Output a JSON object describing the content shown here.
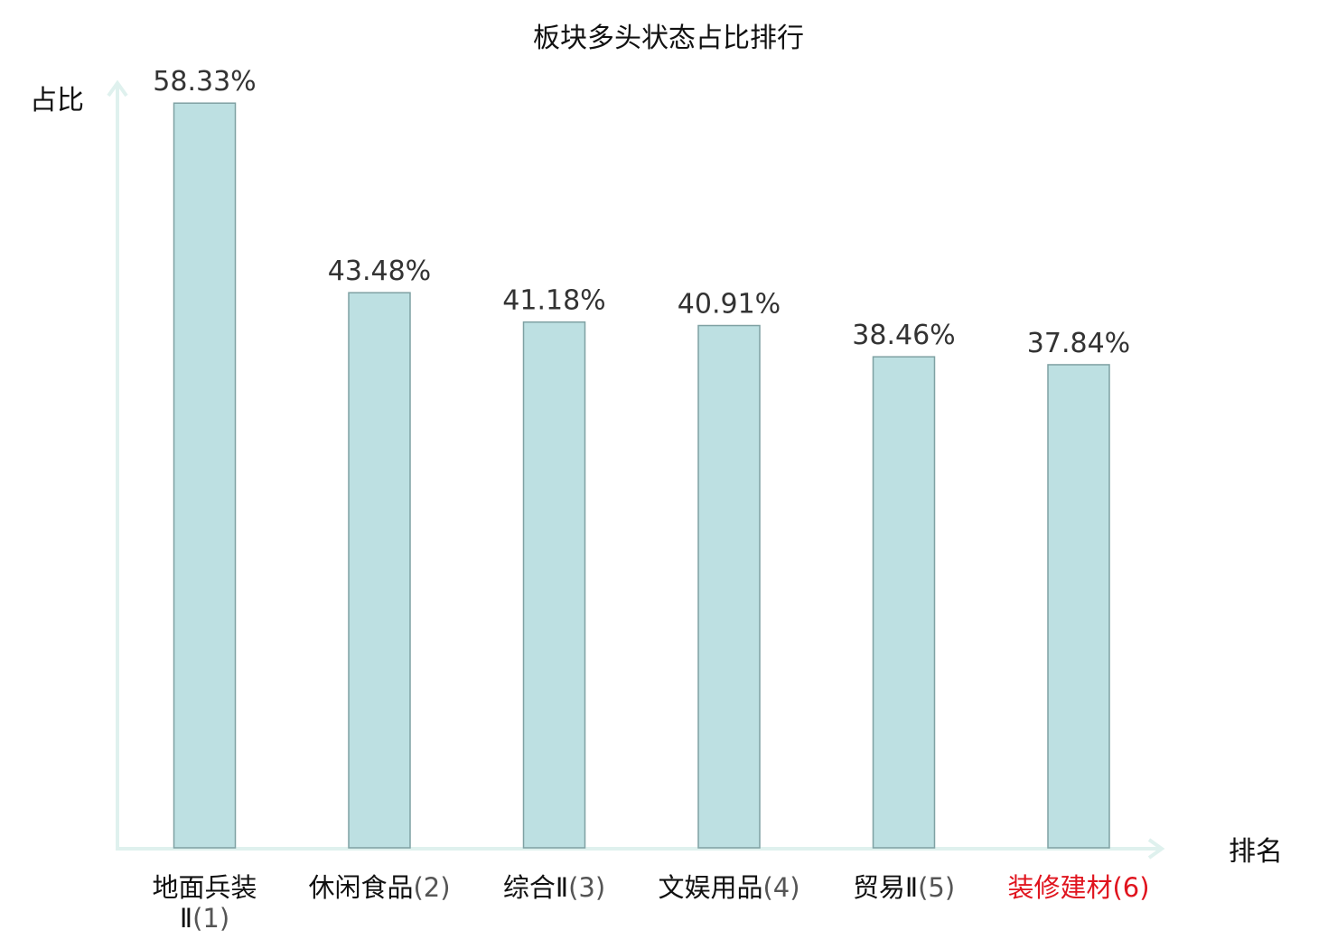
{
  "chart_data": {
    "type": "bar",
    "title": "板块多头状态占比排行",
    "ylabel": "占比",
    "xlabel": "排名",
    "ylim": [
      0,
      60
    ],
    "grid": false,
    "categories": [
      {
        "name_lines": [
          "地面兵装",
          "Ⅱ"
        ],
        "rank": "(1)",
        "highlight": false
      },
      {
        "name_lines": [
          "休闲食品"
        ],
        "rank": "(2)",
        "highlight": false
      },
      {
        "name_lines": [
          "综合Ⅱ"
        ],
        "rank": "(3)",
        "highlight": false
      },
      {
        "name_lines": [
          "文娱用品"
        ],
        "rank": "(4)",
        "highlight": false
      },
      {
        "name_lines": [
          "贸易Ⅱ"
        ],
        "rank": "(5)",
        "highlight": false
      },
      {
        "name_lines": [
          "装修建材"
        ],
        "rank": "(6)",
        "highlight": true
      }
    ],
    "values": [
      58.33,
      43.48,
      41.18,
      40.91,
      38.46,
      37.84
    ],
    "value_labels": [
      "58.33%",
      "43.48%",
      "41.18%",
      "40.91%",
      "38.46%",
      "37.84%"
    ]
  },
  "colors": {
    "bar_fill": "#bde0e2",
    "bar_stroke": "#7fa1a3",
    "axis": "#dff1ee",
    "label_text": "#111111",
    "rank_text": "#555555",
    "highlight_text": "#e0141e"
  }
}
